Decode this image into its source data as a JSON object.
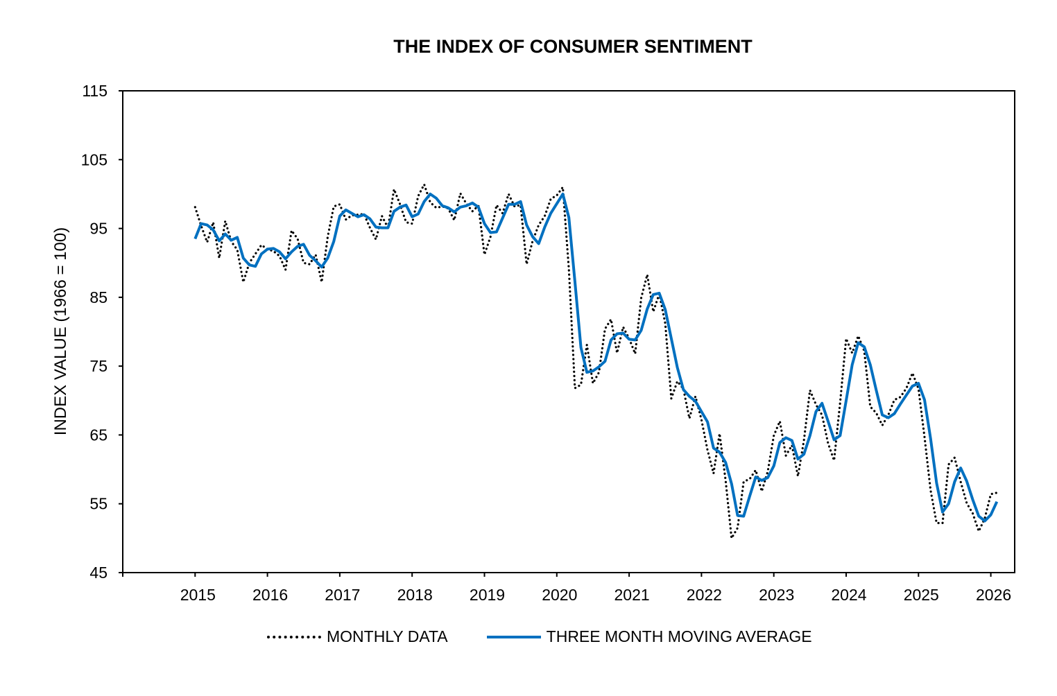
{
  "chart_data": {
    "type": "line",
    "title": "THE INDEX OF CONSUMER SENTIMENT",
    "xlabel": "",
    "ylabel": "INDEX VALUE (1966 = 100)",
    "ylim": [
      45,
      115
    ],
    "xlim": [
      2014,
      2026.33
    ],
    "yticks": [
      "45",
      "55",
      "65",
      "75",
      "85",
      "95",
      "105",
      "115"
    ],
    "xticks": [
      "2015",
      "2016",
      "2017",
      "2018",
      "2019",
      "2020",
      "2021",
      "2022",
      "2023",
      "2024",
      "2025",
      "2026"
    ],
    "x_start": 2015.0,
    "x_step_months": 1,
    "legend_position": "bottom",
    "grid": false,
    "series": [
      {
        "name": "MONTHLY DATA",
        "style": "dotted",
        "color": "#000000",
        "values": [
          98.1,
          95.4,
          93.0,
          95.9,
          90.7,
          96.1,
          93.1,
          91.9,
          87.2,
          90.0,
          91.3,
          92.6,
          92.0,
          91.7,
          91.0,
          89.0,
          94.7,
          93.5,
          90.0,
          89.8,
          91.2,
          87.2,
          93.8,
          98.2,
          98.5,
          96.3,
          96.9,
          97.0,
          97.1,
          95.1,
          93.4,
          96.8,
          95.1,
          100.7,
          98.5,
          95.9,
          95.7,
          99.7,
          101.4,
          98.8,
          98.0,
          98.2,
          97.9,
          96.2,
          100.1,
          98.6,
          97.5,
          98.3,
          91.2,
          93.8,
          98.4,
          97.2,
          100.0,
          98.2,
          98.4,
          89.8,
          93.2,
          95.5,
          96.8,
          99.3,
          99.8,
          101.0,
          89.1,
          71.8,
          72.3,
          78.1,
          72.5,
          74.1,
          80.4,
          81.8,
          76.9,
          80.7,
          79.0,
          76.8,
          84.9,
          88.3,
          82.9,
          85.5,
          81.2,
          70.3,
          72.8,
          71.7,
          67.4,
          70.6,
          67.2,
          62.8,
          59.4,
          65.2,
          58.4,
          50.0,
          51.5,
          58.2,
          58.6,
          59.9,
          56.8,
          59.7,
          64.9,
          67.0,
          62.0,
          63.5,
          59.0,
          64.2,
          71.5,
          69.4,
          67.9,
          63.8,
          61.3,
          69.7,
          79.0,
          76.9,
          79.4,
          77.2,
          69.1,
          68.2,
          66.4,
          67.9,
          70.1,
          70.5,
          71.8,
          74.0,
          71.7,
          64.7,
          57.0,
          52.2,
          52.2,
          60.7,
          61.7,
          58.2,
          55.1,
          53.6,
          51.0,
          52.9,
          56.4,
          56.6
        ]
      },
      {
        "name": "THREE MONTH MOVING AVERAGE",
        "style": "solid",
        "color": "#0070C0",
        "values": [
          93.5,
          95.7,
          95.5,
          94.8,
          93.2,
          94.2,
          93.3,
          93.7,
          90.7,
          89.7,
          89.5,
          91.3,
          92.0,
          92.1,
          91.6,
          90.6,
          91.6,
          92.4,
          92.7,
          91.1,
          90.3,
          89.4,
          90.7,
          93.1,
          96.8,
          97.7,
          97.2,
          96.7,
          97.0,
          96.4,
          95.2,
          95.1,
          95.1,
          97.5,
          98.1,
          98.4,
          96.7,
          97.1,
          98.9,
          100.0,
          99.4,
          98.3,
          98.0,
          97.4,
          98.1,
          98.3,
          98.7,
          98.1,
          95.7,
          94.4,
          94.5,
          96.5,
          98.5,
          98.5,
          98.9,
          95.5,
          93.8,
          92.8,
          95.2,
          97.2,
          98.6,
          100.0,
          96.6,
          87.3,
          77.7,
          74.1,
          74.3,
          74.9,
          75.7,
          78.8,
          79.7,
          79.8,
          78.9,
          78.8,
          80.2,
          83.3,
          85.4,
          85.6,
          83.2,
          79.0,
          74.8,
          71.6,
          70.6,
          69.9,
          68.4,
          66.9,
          63.1,
          62.5,
          61.0,
          57.9,
          53.3,
          53.2,
          56.1,
          58.9,
          58.4,
          58.8,
          60.5,
          63.9,
          64.6,
          64.2,
          61.5,
          62.2,
          64.9,
          68.4,
          69.6,
          67.0,
          64.3,
          64.9,
          70.0,
          75.2,
          78.4,
          77.8,
          75.2,
          71.5,
          67.9,
          67.5,
          68.1,
          69.5,
          70.8,
          72.1,
          72.5,
          70.1,
          64.5,
          58.0,
          53.8,
          55.0,
          58.2,
          60.2,
          58.3,
          55.6,
          53.2,
          52.5,
          53.4,
          55.3
        ]
      }
    ]
  }
}
